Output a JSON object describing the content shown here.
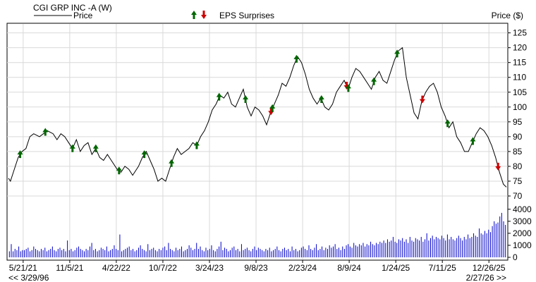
{
  "header": {
    "symbol_title": "CGI GRP INC -A (W)",
    "legend_price_label": "Price",
    "legend_eps_label": "EPS Surprises",
    "y_axis_title": "Price ($)"
  },
  "footer": {
    "range_start": "<< 3/29/96",
    "range_end": "2/27/26 >>"
  },
  "colors": {
    "price_line": "#000000",
    "volume_bars": "#0000cc",
    "eps_beat": "#006600",
    "eps_miss": "#cc0000",
    "grid": "#d9d9d9",
    "frame": "#000000"
  },
  "chart_data": {
    "type": "line",
    "title": "CGI GRP INC -A (W)",
    "ylabel": "Price ($)",
    "ylim": [
      70,
      128
    ],
    "yticks": [
      70,
      75,
      80,
      85,
      90,
      95,
      100,
      105,
      110,
      115,
      120,
      125
    ],
    "x_range": [
      "2021-03-29",
      "2026-02-27"
    ],
    "x_tick_labels": [
      {
        "date": "2021-05-21",
        "label": "5/21/21"
      },
      {
        "date": "2021-11-05",
        "label": "11/5/21"
      },
      {
        "date": "2022-04-22",
        "label": "4/22/22"
      },
      {
        "date": "2022-10-07",
        "label": "10/7/22"
      },
      {
        "date": "2023-03-24",
        "label": "3/24/23"
      },
      {
        "date": "2023-09-08",
        "label": "9/8/23"
      },
      {
        "date": "2024-02-23",
        "label": "2/23/24"
      },
      {
        "date": "2024-08-09",
        "label": "8/9/24"
      },
      {
        "date": "2025-01-24",
        "label": "1/24/25"
      },
      {
        "date": "2025-07-11",
        "label": "7/11/25"
      },
      {
        "date": "2025-12-26",
        "label": "12/26/25"
      }
    ],
    "series": [
      {
        "name": "Price",
        "points": [
          [
            "2021-03-29",
            76
          ],
          [
            "2021-04-05",
            75
          ],
          [
            "2021-04-19",
            79
          ],
          [
            "2021-05-03",
            83
          ],
          [
            "2021-05-17",
            85
          ],
          [
            "2021-05-31",
            86
          ],
          [
            "2021-06-14",
            90
          ],
          [
            "2021-06-28",
            91
          ],
          [
            "2021-07-19",
            90
          ],
          [
            "2021-08-02",
            91
          ],
          [
            "2021-08-16",
            92
          ],
          [
            "2021-09-06",
            91
          ],
          [
            "2021-09-20",
            89
          ],
          [
            "2021-10-04",
            91
          ],
          [
            "2021-10-18",
            90
          ],
          [
            "2021-11-01",
            88
          ],
          [
            "2021-11-15",
            86
          ],
          [
            "2021-11-29",
            89
          ],
          [
            "2021-12-13",
            85
          ],
          [
            "2021-12-27",
            87
          ],
          [
            "2022-01-10",
            88
          ],
          [
            "2022-01-24",
            84
          ],
          [
            "2022-02-07",
            86
          ],
          [
            "2022-02-21",
            83
          ],
          [
            "2022-03-07",
            82
          ],
          [
            "2022-03-21",
            84
          ],
          [
            "2022-04-04",
            82
          ],
          [
            "2022-04-25",
            79
          ],
          [
            "2022-05-09",
            78
          ],
          [
            "2022-05-23",
            80
          ],
          [
            "2022-06-06",
            79
          ],
          [
            "2022-06-20",
            77
          ],
          [
            "2022-07-11",
            80
          ],
          [
            "2022-07-25",
            83
          ],
          [
            "2022-08-08",
            85
          ],
          [
            "2022-08-22",
            82
          ],
          [
            "2022-09-05",
            79
          ],
          [
            "2022-09-19",
            75
          ],
          [
            "2022-10-03",
            76
          ],
          [
            "2022-10-17",
            75
          ],
          [
            "2022-10-31",
            79
          ],
          [
            "2022-11-14",
            83
          ],
          [
            "2022-11-28",
            86
          ],
          [
            "2022-12-12",
            84
          ],
          [
            "2022-12-26",
            85
          ],
          [
            "2023-01-09",
            86
          ],
          [
            "2023-01-23",
            88
          ],
          [
            "2023-02-06",
            87
          ],
          [
            "2023-02-20",
            90
          ],
          [
            "2023-03-06",
            92
          ],
          [
            "2023-03-20",
            95
          ],
          [
            "2023-04-03",
            99
          ],
          [
            "2023-04-17",
            101
          ],
          [
            "2023-05-01",
            104
          ],
          [
            "2023-05-15",
            103
          ],
          [
            "2023-05-29",
            105
          ],
          [
            "2023-06-12",
            101
          ],
          [
            "2023-06-26",
            100
          ],
          [
            "2023-07-10",
            103
          ],
          [
            "2023-07-24",
            106
          ],
          [
            "2023-08-07",
            100
          ],
          [
            "2023-08-21",
            97
          ],
          [
            "2023-09-04",
            100
          ],
          [
            "2023-09-18",
            99
          ],
          [
            "2023-10-02",
            97
          ],
          [
            "2023-10-16",
            94
          ],
          [
            "2023-10-30",
            98
          ],
          [
            "2023-11-13",
            101
          ],
          [
            "2023-11-27",
            104
          ],
          [
            "2023-12-11",
            108
          ],
          [
            "2023-12-25",
            107
          ],
          [
            "2024-01-08",
            110
          ],
          [
            "2024-01-22",
            114
          ],
          [
            "2024-02-05",
            117
          ],
          [
            "2024-02-19",
            115
          ],
          [
            "2024-03-04",
            111
          ],
          [
            "2024-03-18",
            106
          ],
          [
            "2024-04-01",
            103
          ],
          [
            "2024-04-15",
            101
          ],
          [
            "2024-04-29",
            103
          ],
          [
            "2024-05-13",
            100
          ],
          [
            "2024-05-27",
            99
          ],
          [
            "2024-06-10",
            101
          ],
          [
            "2024-06-24",
            105
          ],
          [
            "2024-07-08",
            107
          ],
          [
            "2024-07-22",
            109
          ],
          [
            "2024-08-05",
            106
          ],
          [
            "2024-08-19",
            110
          ],
          [
            "2024-09-02",
            113
          ],
          [
            "2024-09-16",
            112
          ],
          [
            "2024-09-30",
            110
          ],
          [
            "2024-10-14",
            108
          ],
          [
            "2024-10-28",
            106
          ],
          [
            "2024-11-11",
            110
          ],
          [
            "2024-11-25",
            112
          ],
          [
            "2024-12-09",
            109
          ],
          [
            "2024-12-23",
            108
          ],
          [
            "2025-01-06",
            112
          ],
          [
            "2025-01-20",
            116
          ],
          [
            "2025-02-03",
            119
          ],
          [
            "2025-02-17",
            120
          ],
          [
            "2025-03-03",
            110
          ],
          [
            "2025-03-17",
            104
          ],
          [
            "2025-03-31",
            98
          ],
          [
            "2025-04-14",
            96
          ],
          [
            "2025-04-28",
            102
          ],
          [
            "2025-05-12",
            105
          ],
          [
            "2025-05-26",
            107
          ],
          [
            "2025-06-09",
            108
          ],
          [
            "2025-06-23",
            105
          ],
          [
            "2025-07-07",
            100
          ],
          [
            "2025-07-21",
            97
          ],
          [
            "2025-08-04",
            93
          ],
          [
            "2025-08-18",
            95
          ],
          [
            "2025-09-01",
            90
          ],
          [
            "2025-09-15",
            88
          ],
          [
            "2025-09-29",
            85
          ],
          [
            "2025-10-13",
            85
          ],
          [
            "2025-10-27",
            88
          ],
          [
            "2025-11-10",
            91
          ],
          [
            "2025-11-24",
            93
          ],
          [
            "2025-12-08",
            92
          ],
          [
            "2025-12-22",
            90
          ],
          [
            "2026-01-05",
            87
          ],
          [
            "2026-01-19",
            83
          ],
          [
            "2026-02-02",
            78
          ],
          [
            "2026-02-16",
            74
          ],
          [
            "2026-02-27",
            73
          ]
        ]
      },
      {
        "name": "Volume",
        "ylim": [
          0,
          4400
        ],
        "yticks": [
          0,
          1000,
          2000,
          3000,
          4000
        ],
        "values": [
          500,
          1100,
          500,
          700,
          600,
          900,
          500,
          600,
          600,
          700,
          800,
          500,
          600,
          900,
          700,
          600,
          500,
          700,
          600,
          800,
          500,
          600,
          700,
          900,
          600,
          500,
          700,
          800,
          600,
          700,
          500,
          1400,
          600,
          700,
          500,
          600,
          800,
          900,
          700,
          600,
          500,
          700,
          600,
          900,
          1200,
          600,
          700,
          500,
          600,
          800,
          700,
          600,
          900,
          500,
          600,
          700,
          1000,
          700,
          600,
          1900,
          500,
          600,
          700,
          800,
          900,
          600,
          700,
          500,
          600,
          800,
          1000,
          700,
          600,
          500,
          1100,
          600,
          700,
          800,
          600,
          500,
          700,
          600,
          800,
          900,
          600,
          1200,
          700,
          600,
          500,
          800,
          600,
          700,
          900,
          500,
          600,
          700,
          1000,
          800,
          600,
          700,
          1200,
          700,
          900,
          600,
          500,
          800,
          600,
          700,
          1000,
          600,
          500,
          700,
          900,
          1300,
          600,
          800,
          700,
          500,
          600,
          800,
          900,
          600,
          700,
          500,
          1100,
          600,
          700,
          800,
          600,
          500,
          700,
          900,
          600,
          800,
          700,
          600,
          500,
          700,
          600,
          800,
          500,
          600,
          700,
          900,
          600,
          500,
          700,
          800,
          600,
          700,
          500,
          900,
          600,
          700,
          500,
          600,
          800,
          900,
          700,
          600,
          1000,
          700,
          600,
          800,
          1100,
          600,
          700,
          900,
          600,
          800,
          700,
          1000,
          800,
          900,
          1100,
          700,
          800,
          600,
          900,
          700,
          1000,
          1100,
          900,
          800,
          1200,
          1000,
          900,
          1100,
          1000,
          1200,
          900,
          1100,
          1000,
          1300,
          1100,
          1000,
          1200,
          1100,
          1300,
          1200,
          1400,
          1200,
          1500,
          1300,
          1400,
          1700,
          1300,
          1200,
          1500,
          1400,
          1600,
          1300,
          1500,
          1200,
          1700,
          1400,
          1300,
          1600,
          1500,
          1400,
          1700,
          1300,
          1500,
          2000,
          1400,
          1600,
          1800,
          1500,
          1700,
          1600,
          1500,
          1800,
          1600,
          1400,
          1900,
          1500,
          1700,
          1500,
          1400,
          1600,
          1800,
          1600,
          1400,
          1700,
          1500,
          1900,
          1600,
          1700,
          2000,
          1800,
          1700,
          2400,
          2000,
          1900,
          2200,
          2000,
          2300,
          2100,
          2600,
          3000,
          2800,
          2900,
          3400,
          3700,
          3000,
          2700
        ]
      }
    ],
    "eps_surprises": [
      {
        "date": "2021-05-10",
        "type": "beat"
      },
      {
        "date": "2021-08-09",
        "type": "beat"
      },
      {
        "date": "2021-11-15",
        "type": "beat"
      },
      {
        "date": "2022-02-07",
        "type": "beat"
      },
      {
        "date": "2022-05-02",
        "type": "beat"
      },
      {
        "date": "2022-08-01",
        "type": "beat"
      },
      {
        "date": "2022-11-07",
        "type": "beat"
      },
      {
        "date": "2023-02-06",
        "type": "beat"
      },
      {
        "date": "2023-04-28",
        "type": "beat"
      },
      {
        "date": "2023-08-01",
        "type": "beat"
      },
      {
        "date": "2023-11-01",
        "type": "miss"
      },
      {
        "date": "2023-11-06",
        "type": "beat"
      },
      {
        "date": "2024-02-01",
        "type": "beat"
      },
      {
        "date": "2024-05-01",
        "type": "beat"
      },
      {
        "date": "2024-07-31",
        "type": "miss"
      },
      {
        "date": "2024-08-06",
        "type": "beat"
      },
      {
        "date": "2024-11-06",
        "type": "beat"
      },
      {
        "date": "2025-01-29",
        "type": "beat"
      },
      {
        "date": "2025-04-30",
        "type": "miss"
      },
      {
        "date": "2025-07-30",
        "type": "beat"
      },
      {
        "date": "2025-10-29",
        "type": "beat"
      },
      {
        "date": "2026-01-28",
        "type": "miss"
      }
    ]
  }
}
